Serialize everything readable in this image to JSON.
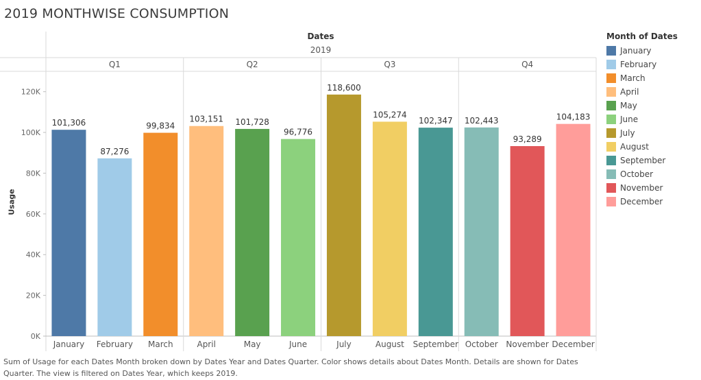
{
  "title": "2019 MONTHWISE CONSUMPTION",
  "column_header": {
    "field": "Dates",
    "year": "2019"
  },
  "caption": "Sum of Usage for each Dates Month broken down by Dates Year and Dates Quarter.  Color shows details about Dates Month.  Details are shown for Dates Quarter. The view is filtered on Dates Year, which keeps 2019.",
  "legend": {
    "title": "Month of Dates",
    "items": [
      {
        "label": "January",
        "color": "#4e79a7"
      },
      {
        "label": "February",
        "color": "#a0cbe8"
      },
      {
        "label": "March",
        "color": "#f28e2b"
      },
      {
        "label": "April",
        "color": "#ffbe7d"
      },
      {
        "label": "May",
        "color": "#59a14f"
      },
      {
        "label": "June",
        "color": "#8cd17d"
      },
      {
        "label": "July",
        "color": "#b6992d"
      },
      {
        "label": "August",
        "color": "#f1ce63"
      },
      {
        "label": "September",
        "color": "#499894"
      },
      {
        "label": "October",
        "color": "#86bcb6"
      },
      {
        "label": "November",
        "color": "#e15759"
      },
      {
        "label": "December",
        "color": "#ff9d9a"
      }
    ]
  },
  "chart_data": {
    "type": "bar",
    "title": "2019 MONTHWISE CONSUMPTION",
    "ylabel": "Usage",
    "xlabel": "",
    "ylim": [
      0,
      130000
    ],
    "yticks": [
      0,
      20000,
      40000,
      60000,
      80000,
      100000,
      120000
    ],
    "ytick_labels": [
      "0K",
      "20K",
      "40K",
      "60K",
      "80K",
      "100K",
      "120K"
    ],
    "quarters": [
      "Q1",
      "Q2",
      "Q3",
      "Q4"
    ],
    "categories": [
      "January",
      "February",
      "March",
      "April",
      "May",
      "June",
      "July",
      "August",
      "September",
      "October",
      "November",
      "December"
    ],
    "values": [
      101306,
      87276,
      99834,
      103151,
      101728,
      96776,
      118600,
      105274,
      102347,
      102443,
      93289,
      104183
    ],
    "value_labels": [
      "101,306",
      "87,276",
      "99,834",
      "103,151",
      "101,728",
      "96,776",
      "118,600",
      "105,274",
      "102,347",
      "102,443",
      "93,289",
      "104,183"
    ],
    "colors": [
      "#4e79a7",
      "#a0cbe8",
      "#f28e2b",
      "#ffbe7d",
      "#59a14f",
      "#8cd17d",
      "#b6992d",
      "#f1ce63",
      "#499894",
      "#86bcb6",
      "#e15759",
      "#ff9d9a"
    ],
    "grid": false,
    "legend_position": "right"
  }
}
